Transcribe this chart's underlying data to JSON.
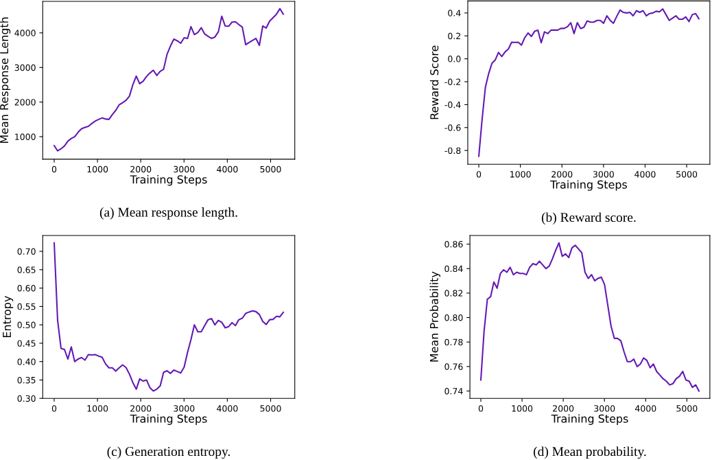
{
  "chart_data": [
    {
      "type": "line",
      "xlabel": "Training Steps",
      "ylabel": "Mean Response Length",
      "annotations": [
        "(a) Mean response length."
      ],
      "x": [
        0,
        79,
        158,
        237,
        316,
        395,
        474,
        553,
        632,
        711,
        790,
        869,
        948,
        1027,
        1106,
        1185,
        1264,
        1343,
        1422,
        1501,
        1580,
        1659,
        1738,
        1817,
        1896,
        1975,
        2054,
        2133,
        2212,
        2291,
        2370,
        2449,
        2528,
        2607,
        2686,
        2765,
        2844,
        2923,
        3002,
        3081,
        3160,
        3239,
        3318,
        3397,
        3476,
        3555,
        3634,
        3713,
        3792,
        3871,
        3950,
        4029,
        4108,
        4187,
        4266,
        4345,
        4424,
        4503,
        4582,
        4661,
        4740,
        4819,
        4898,
        4977,
        5056,
        5135,
        5214,
        5293
      ],
      "series": [
        {
          "color": "#6418b4",
          "values": [
            740,
            590,
            650,
            730,
            870,
            950,
            1000,
            1130,
            1230,
            1270,
            1300,
            1380,
            1450,
            1500,
            1540,
            1510,
            1500,
            1640,
            1760,
            1920,
            1980,
            2050,
            2170,
            2500,
            2750,
            2530,
            2600,
            2740,
            2840,
            2920,
            2770,
            2890,
            2950,
            3380,
            3620,
            3820,
            3770,
            3700,
            3860,
            3840,
            4180,
            3950,
            4010,
            4150,
            3970,
            3900,
            3840,
            3880,
            4030,
            4480,
            4200,
            4190,
            4310,
            4320,
            4240,
            4170,
            3660,
            3720,
            3780,
            3840,
            3640,
            4200,
            4140,
            4340,
            4440,
            4540,
            4700,
            4540
          ]
        }
      ],
      "xlim": [
        -265,
        5558
      ],
      "xticks": [
        0,
        1000,
        2000,
        3000,
        4000,
        5000
      ],
      "ylim": [
        350,
        4910
      ],
      "yticks": [
        1000,
        2000,
        3000,
        4000
      ]
    },
    {
      "type": "line",
      "xlabel": "Training Steps",
      "ylabel": "Reward Score",
      "annotations": [
        "(b) Reward score."
      ],
      "x": [
        0,
        79,
        158,
        237,
        316,
        395,
        474,
        553,
        632,
        711,
        790,
        869,
        948,
        1027,
        1106,
        1185,
        1264,
        1343,
        1422,
        1501,
        1580,
        1659,
        1738,
        1817,
        1896,
        1975,
        2054,
        2133,
        2212,
        2291,
        2370,
        2449,
        2528,
        2607,
        2686,
        2765,
        2844,
        2923,
        3002,
        3081,
        3160,
        3239,
        3318,
        3397,
        3476,
        3555,
        3634,
        3713,
        3792,
        3871,
        3950,
        4029,
        4108,
        4187,
        4266,
        4345,
        4424,
        4503,
        4582,
        4661,
        4740,
        4819,
        4898,
        4977,
        5056,
        5135,
        5214,
        5293
      ],
      "series": [
        {
          "color": "#6418b4",
          "values": [
            -0.85,
            -0.53,
            -0.25,
            -0.13,
            -0.04,
            -0.01,
            0.055,
            0.02,
            0.06,
            0.085,
            0.145,
            0.143,
            0.145,
            0.12,
            0.185,
            0.225,
            0.195,
            0.24,
            0.25,
            0.14,
            0.235,
            0.22,
            0.25,
            0.25,
            0.25,
            0.265,
            0.265,
            0.28,
            0.315,
            0.22,
            0.315,
            0.265,
            0.275,
            0.33,
            0.32,
            0.32,
            0.335,
            0.335,
            0.31,
            0.375,
            0.335,
            0.31,
            0.37,
            0.425,
            0.405,
            0.4,
            0.405,
            0.375,
            0.42,
            0.405,
            0.42,
            0.375,
            0.395,
            0.4,
            0.415,
            0.41,
            0.435,
            0.385,
            0.335,
            0.355,
            0.375,
            0.345,
            0.345,
            0.365,
            0.325,
            0.385,
            0.395,
            0.35
          ]
        }
      ],
      "xlim": [
        -265,
        5558
      ],
      "xticks": [
        0,
        1000,
        2000,
        3000,
        4000,
        5000
      ],
      "ylim": [
        -0.92,
        0.505
      ],
      "yticks": [
        -0.8,
        -0.6,
        -0.4,
        -0.2,
        {
          "value": 0,
          "label": "0.0"
        },
        0.2,
        0.4
      ]
    },
    {
      "type": "line",
      "xlabel": "Training Steps",
      "ylabel": "Entropy",
      "annotations": [
        "(c) Generation entropy."
      ],
      "x": [
        0,
        79,
        158,
        237,
        316,
        395,
        474,
        553,
        632,
        711,
        790,
        869,
        948,
        1027,
        1106,
        1185,
        1264,
        1343,
        1422,
        1501,
        1580,
        1659,
        1738,
        1817,
        1896,
        1975,
        2054,
        2133,
        2212,
        2291,
        2370,
        2449,
        2528,
        2607,
        2686,
        2765,
        2844,
        2923,
        3002,
        3081,
        3160,
        3239,
        3318,
        3397,
        3476,
        3555,
        3634,
        3713,
        3792,
        3871,
        3950,
        4029,
        4108,
        4187,
        4266,
        4345,
        4424,
        4503,
        4582,
        4661,
        4740,
        4819,
        4898,
        4977,
        5056,
        5135,
        5214,
        5293
      ],
      "series": [
        {
          "color": "#6418b4",
          "values": [
            0.723,
            0.512,
            0.436,
            0.433,
            0.407,
            0.44,
            0.4,
            0.407,
            0.411,
            0.404,
            0.419,
            0.418,
            0.419,
            0.415,
            0.412,
            0.394,
            0.383,
            0.383,
            0.374,
            0.383,
            0.391,
            0.384,
            0.366,
            0.343,
            0.325,
            0.353,
            0.347,
            0.35,
            0.329,
            0.32,
            0.325,
            0.334,
            0.371,
            0.375,
            0.368,
            0.377,
            0.373,
            0.369,
            0.385,
            0.425,
            0.46,
            0.5,
            0.481,
            0.481,
            0.498,
            0.514,
            0.517,
            0.5,
            0.512,
            0.507,
            0.492,
            0.495,
            0.506,
            0.498,
            0.514,
            0.518,
            0.531,
            0.535,
            0.538,
            0.536,
            0.528,
            0.509,
            0.501,
            0.514,
            0.515,
            0.523,
            0.522,
            0.534
          ]
        }
      ],
      "xlim": [
        -265,
        5558
      ],
      "xticks": [
        0,
        1000,
        2000,
        3000,
        4000,
        5000
      ],
      "ylim": [
        0.3,
        0.743
      ],
      "yticks": [
        {
          "value": 0.3,
          "label": "0.30"
        },
        {
          "value": 0.35,
          "label": "0.35"
        },
        {
          "value": 0.4,
          "label": "0.40"
        },
        {
          "value": 0.45,
          "label": "0.45"
        },
        {
          "value": 0.5,
          "label": "0.50"
        },
        {
          "value": 0.55,
          "label": "0.55"
        },
        {
          "value": 0.6,
          "label": "0.60"
        },
        {
          "value": 0.65,
          "label": "0.65"
        },
        {
          "value": 0.7,
          "label": "0.70"
        }
      ]
    },
    {
      "type": "line",
      "xlabel": "Training Steps",
      "ylabel": "Mean Probability",
      "annotations": [
        "(d) Mean probability."
      ],
      "x": [
        0,
        79,
        158,
        237,
        316,
        395,
        474,
        553,
        632,
        711,
        790,
        869,
        948,
        1027,
        1106,
        1185,
        1264,
        1343,
        1422,
        1501,
        1580,
        1659,
        1738,
        1817,
        1896,
        1975,
        2054,
        2133,
        2212,
        2291,
        2370,
        2449,
        2528,
        2607,
        2686,
        2765,
        2844,
        2923,
        3002,
        3081,
        3160,
        3239,
        3318,
        3397,
        3476,
        3555,
        3634,
        3713,
        3792,
        3871,
        3950,
        4029,
        4108,
        4187,
        4266,
        4345,
        4424,
        4503,
        4582,
        4661,
        4740,
        4819,
        4898,
        4977,
        5056,
        5135,
        5214,
        5293
      ],
      "series": [
        {
          "color": "#6418b4",
          "values": [
            0.749,
            0.789,
            0.815,
            0.817,
            0.829,
            0.824,
            0.836,
            0.839,
            0.837,
            0.841,
            0.835,
            0.837,
            0.836,
            0.836,
            0.835,
            0.841,
            0.844,
            0.843,
            0.846,
            0.843,
            0.84,
            0.842,
            0.848,
            0.855,
            0.861,
            0.85,
            0.852,
            0.849,
            0.857,
            0.859,
            0.856,
            0.853,
            0.837,
            0.832,
            0.835,
            0.83,
            0.832,
            0.833,
            0.827,
            0.81,
            0.793,
            0.783,
            0.783,
            0.781,
            0.772,
            0.764,
            0.764,
            0.766,
            0.76,
            0.762,
            0.767,
            0.765,
            0.759,
            0.762,
            0.756,
            0.753,
            0.75,
            0.748,
            0.745,
            0.746,
            0.75,
            0.752,
            0.756,
            0.749,
            0.748,
            0.743,
            0.745,
            0.74
          ]
        }
      ],
      "xlim": [
        -265,
        5558
      ],
      "xticks": [
        0,
        1000,
        2000,
        3000,
        4000,
        5000
      ],
      "ylim": [
        0.734,
        0.867
      ],
      "yticks": [
        0.74,
        0.76,
        0.78,
        {
          "value": 0.8,
          "label": "0.80"
        },
        0.82,
        0.84,
        0.86
      ]
    }
  ]
}
